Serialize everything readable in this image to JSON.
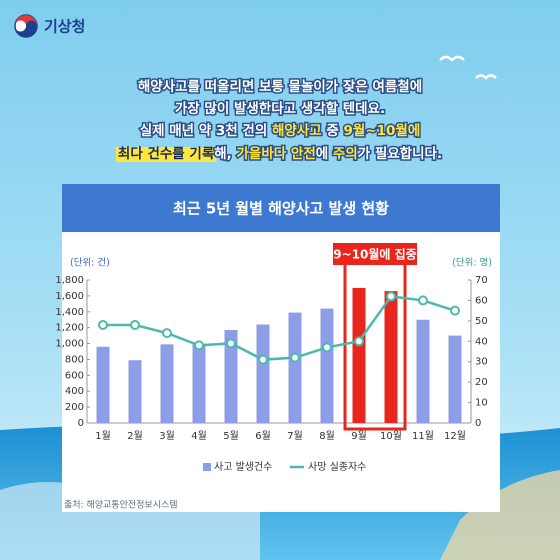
{
  "logo": "기상청",
  "intro": [
    [
      {
        "text": "해양사고를 떠올리면 보통 물놀이가 잦은 여름철에"
      }
    ],
    [
      {
        "text": "가장 많이 발생한다고 생각할 텐데요."
      }
    ],
    [
      {
        "text": "실제 매년 약 3천 건의 "
      },
      {
        "text": "해양사고",
        "style": "yellow"
      },
      {
        "text": " 중 "
      },
      {
        "text": "9월~10월에",
        "style": "yellow"
      }
    ],
    [
      {
        "text": "최다 건수를 기록",
        "style": "marker"
      },
      {
        "text": "해, "
      },
      {
        "text": "가을바다 안전",
        "style": "yellow"
      },
      {
        "text": "에 "
      },
      {
        "text": "주의",
        "style": "yellow"
      },
      {
        "text": "가 필요합니다."
      }
    ]
  ],
  "source": "출처: 해양교통안전정보시스템",
  "chart_data": {
    "type": "bar-line",
    "title": "최근 5년 월별 해양사고 발생 현황",
    "y_unit": "(단위: 건)",
    "y2_unit": "(단위: 명)",
    "annotation": "9~10월에 집중",
    "categories": [
      "1월",
      "2월",
      "3월",
      "4월",
      "5월",
      "6월",
      "7월",
      "8월",
      "9월",
      "10월",
      "11월",
      "12월"
    ],
    "series": [
      {
        "name": "사고 발생건수",
        "type": "bar",
        "color": "#8c9fe6",
        "highlight_color": "#e8261e",
        "highlight": [
          8,
          9
        ],
        "values": [
          960,
          790,
          990,
          1000,
          1170,
          1240,
          1390,
          1440,
          1700,
          1660,
          1300,
          1100
        ]
      },
      {
        "name": "사망 실종자수",
        "type": "line",
        "axis": "y2",
        "color": "#4cb9aa",
        "values": [
          48,
          48,
          44,
          38,
          39,
          31,
          32,
          37,
          40,
          62,
          60,
          55
        ]
      }
    ],
    "ylim": [
      0,
      1800
    ],
    "yticks": [
      0,
      200,
      400,
      600,
      800,
      {
        "value": 1000,
        "label": "1,000"
      },
      {
        "value": 1200,
        "label": "1,200"
      },
      {
        "value": 1400,
        "label": "1,400"
      },
      {
        "value": 1600,
        "label": "1,600"
      },
      {
        "value": 1800,
        "label": "1,800"
      }
    ],
    "y2lim": [
      0,
      70
    ],
    "y2ticks": [
      0,
      10,
      20,
      30,
      40,
      50,
      60,
      70
    ],
    "grid": false,
    "legend": "bottom"
  }
}
